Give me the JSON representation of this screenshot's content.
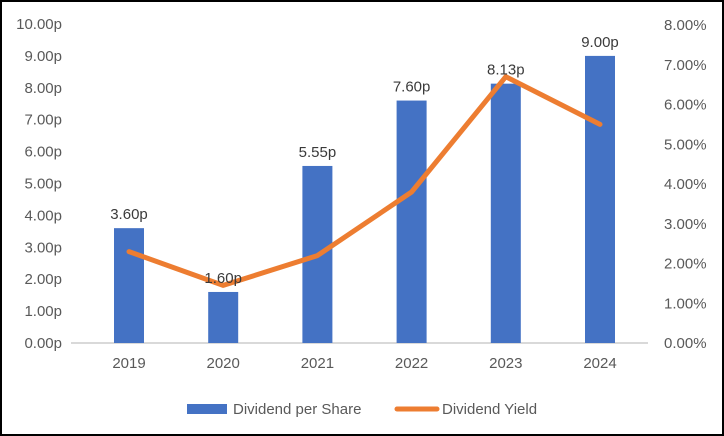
{
  "chart_data": {
    "type": "bar",
    "subtype": "combo-bar-line",
    "title": "",
    "categories": [
      "2019",
      "2020",
      "2021",
      "2022",
      "2023",
      "2024"
    ],
    "series": [
      {
        "name": "Dividend per Share",
        "type": "bar",
        "axis": "left",
        "values": [
          3.6,
          1.6,
          5.55,
          7.6,
          8.13,
          9.0
        ],
        "labels": [
          "3.60p",
          "1.60p",
          "5.55p",
          "7.60p",
          "8.13p",
          "9.00p"
        ],
        "color": "#4472C4"
      },
      {
        "name": "Dividend Yield",
        "type": "line",
        "axis": "right",
        "values": [
          2.3,
          1.45,
          2.2,
          3.8,
          6.7,
          5.5
        ],
        "color": "#ED7D31"
      }
    ],
    "left_axis": {
      "min": 0,
      "max": 10,
      "step": 1,
      "tick_labels": [
        "0.00p",
        "1.00p",
        "2.00p",
        "3.00p",
        "4.00p",
        "5.00p",
        "6.00p",
        "7.00p",
        "8.00p",
        "9.00p",
        "10.00p"
      ]
    },
    "right_axis": {
      "min": 0,
      "max": 8,
      "step": 1,
      "tick_labels": [
        "0.00%",
        "1.00%",
        "2.00%",
        "3.00%",
        "4.00%",
        "5.00%",
        "6.00%",
        "7.00%",
        "8.00%"
      ]
    },
    "legend": {
      "position": "bottom",
      "items": [
        {
          "label": "Dividend per Share",
          "swatch": "bar",
          "color": "#4472C4"
        },
        {
          "label": "Dividend Yield",
          "swatch": "line",
          "color": "#ED7D31"
        }
      ]
    },
    "grid": "off",
    "colors": {
      "axis_text": "#595959",
      "data_label_text": "#3A3A3A",
      "baseline": "#D9D9D9",
      "frame_border": "#000000",
      "background": "#FFFFFF"
    }
  }
}
